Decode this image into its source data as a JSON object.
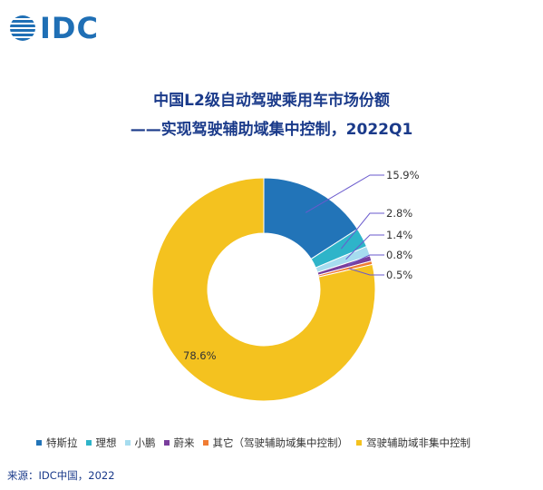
{
  "brand": {
    "logo_text": "IDC",
    "color": "#1f6fb5",
    "icon": "idc-globe-logo"
  },
  "title_line1": "中国L2级自动驾驶乘用车市场份额",
  "title_line2": "——实现驾驶辅助域集中控制，2022Q1",
  "source": "来源：IDC中国，2022",
  "chart_data": {
    "type": "pie",
    "donut": true,
    "categories": [
      "特斯拉",
      "理想",
      "小鹏",
      "蔚来",
      "其它（驾驶辅助域集中控制）",
      "驾驶辅助域非集中控制"
    ],
    "values": [
      15.9,
      2.8,
      1.4,
      0.8,
      0.5,
      78.6
    ],
    "labels": [
      "15.9%",
      "2.8%",
      "1.4%",
      "0.8%",
      "0.5%",
      "78.6%"
    ],
    "colors": [
      "#2274b8",
      "#2eb4c9",
      "#a6dcef",
      "#7a3e9d",
      "#f07c33",
      "#f4c21f"
    ],
    "legend_position": "bottom"
  }
}
